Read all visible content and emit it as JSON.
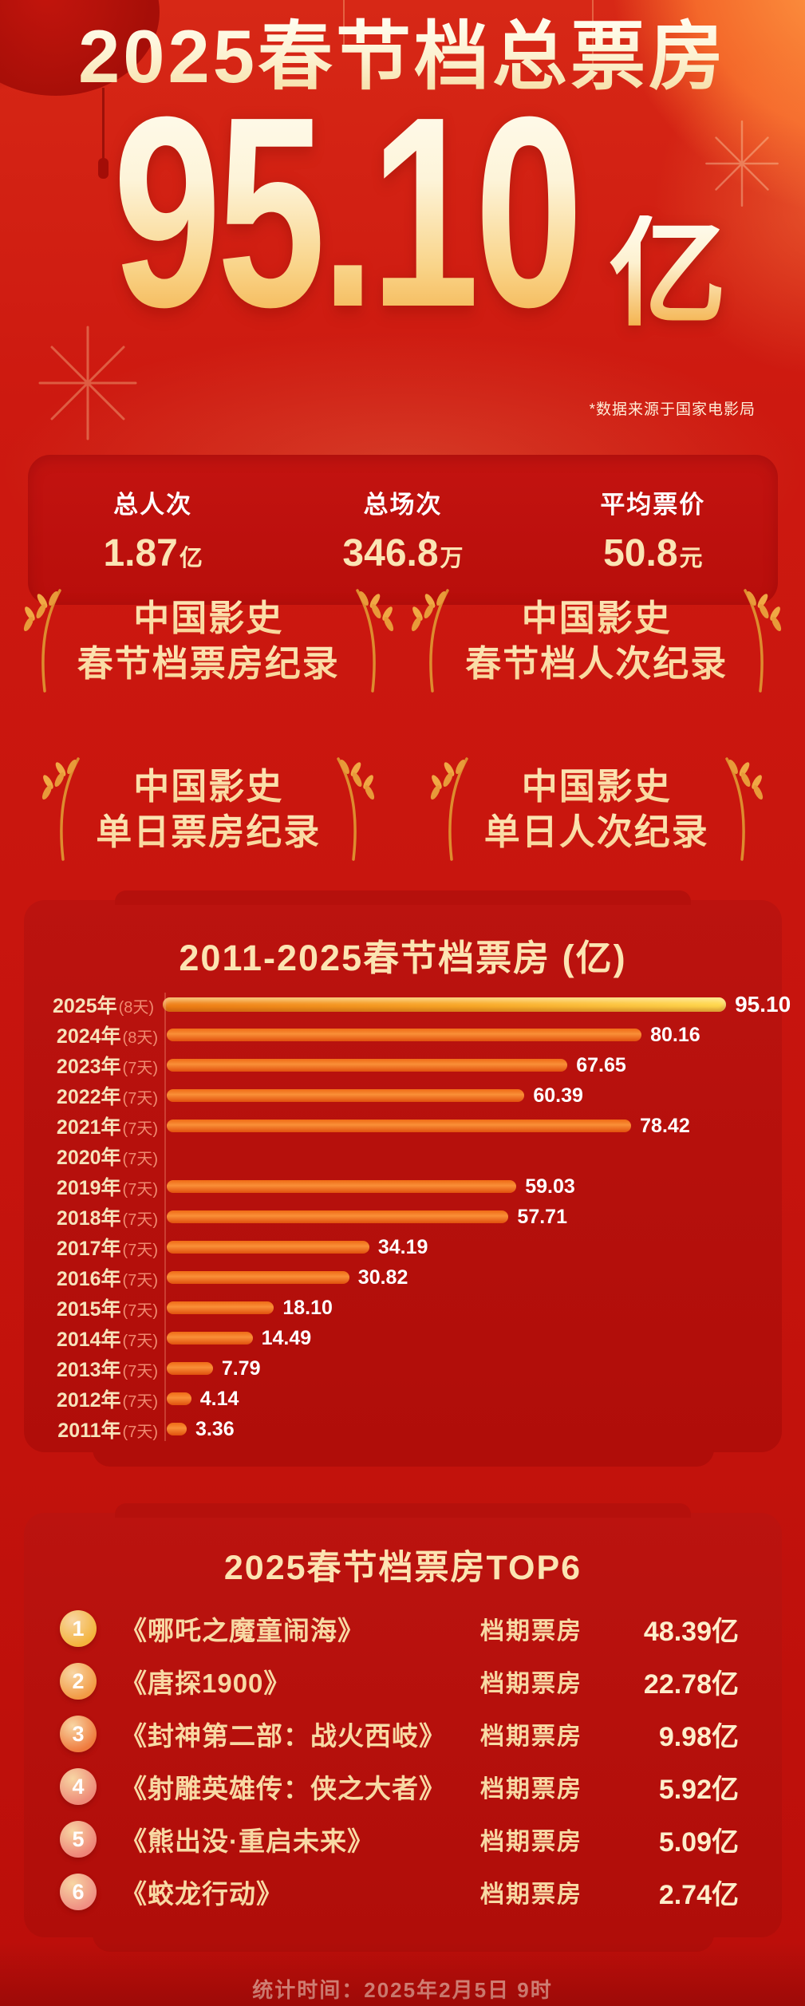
{
  "header": {
    "title": "2025春节档总票房",
    "amount": "95.10",
    "unit": "亿",
    "source_note": "*数据来源于国家电影局"
  },
  "stats": [
    {
      "label": "总人次",
      "value": "1.87",
      "unit": "亿"
    },
    {
      "label": "总场次",
      "value": "346.8",
      "unit": "万"
    },
    {
      "label": "平均票价",
      "value": "50.8",
      "unit": "元"
    }
  ],
  "records": [
    {
      "line1": "中国影史",
      "line2": "春节档票房纪录"
    },
    {
      "line1": "中国影史",
      "line2": "春节档人次纪录"
    },
    {
      "line1": "中国影史",
      "line2": "单日票房纪录"
    },
    {
      "line1": "中国影史",
      "line2": "单日人次纪录"
    }
  ],
  "chart_data": {
    "type": "bar",
    "orientation": "horizontal",
    "title": "2011-2025春节档票房 (亿)",
    "categories": [
      "2025年",
      "2024年",
      "2023年",
      "2022年",
      "2021年",
      "2020年",
      "2019年",
      "2018年",
      "2017年",
      "2016年",
      "2015年",
      "2014年",
      "2013年",
      "2012年",
      "2011年"
    ],
    "period_days": [
      "8天",
      "8天",
      "7天",
      "7天",
      "7天",
      "7天",
      "7天",
      "7天",
      "7天",
      "7天",
      "7天",
      "7天",
      "7天",
      "7天",
      "7天"
    ],
    "values": [
      95.1,
      80.16,
      67.65,
      60.39,
      78.42,
      null,
      59.03,
      57.71,
      34.19,
      30.82,
      18.1,
      14.49,
      7.79,
      4.14,
      3.36
    ],
    "value_labels": [
      "95.10",
      "80.16",
      "67.65",
      "60.39",
      "78.42",
      "",
      "59.03",
      "57.71",
      "34.19",
      "30.82",
      "18.10",
      "14.49",
      "7.79",
      "4.14",
      "3.36"
    ],
    "xlim": [
      0,
      100
    ],
    "grid": false,
    "legend": "none",
    "bar_color": "#ee5f14",
    "highlight_bar_gradient": [
      "#ef7d15",
      "#ffd94f"
    ]
  },
  "top6": {
    "title": "2025春节档票房TOP6",
    "badge_colors": [
      "#f3b33c",
      "#f29a44",
      "#ef7b3e",
      "#ee8a78",
      "#ee8478",
      "#ef8f83"
    ],
    "rows": [
      {
        "rank": "1",
        "movie": "《哪吒之魔童闹海》",
        "label": "档期票房",
        "value": "48.39亿"
      },
      {
        "rank": "2",
        "movie": "《唐探1900》",
        "label": "档期票房",
        "value": "22.78亿"
      },
      {
        "rank": "3",
        "movie": "《封神第二部：战火西岐》",
        "label": "档期票房",
        "value": "9.98亿"
      },
      {
        "rank": "4",
        "movie": "《射雕英雄传：侠之大者》",
        "label": "档期票房",
        "value": "5.92亿"
      },
      {
        "rank": "5",
        "movie": "《熊出没·重启未来》",
        "label": "档期票房",
        "value": "5.09亿"
      },
      {
        "rank": "6",
        "movie": "《蛟龙行动》",
        "label": "档期票房",
        "value": "2.74亿"
      }
    ]
  },
  "footer": {
    "text": "统计时间：2025年2月5日  9时"
  },
  "colors": {
    "background_red": "#c8150e",
    "panel_red": "#b5100c",
    "cream": "#fce4b2",
    "gold": "#f2a93c",
    "bar_orange": "#ee5f14",
    "salmon_days": "#f08a70",
    "value_white": "#ffffff",
    "footer_pink": "#ec9a8d"
  }
}
